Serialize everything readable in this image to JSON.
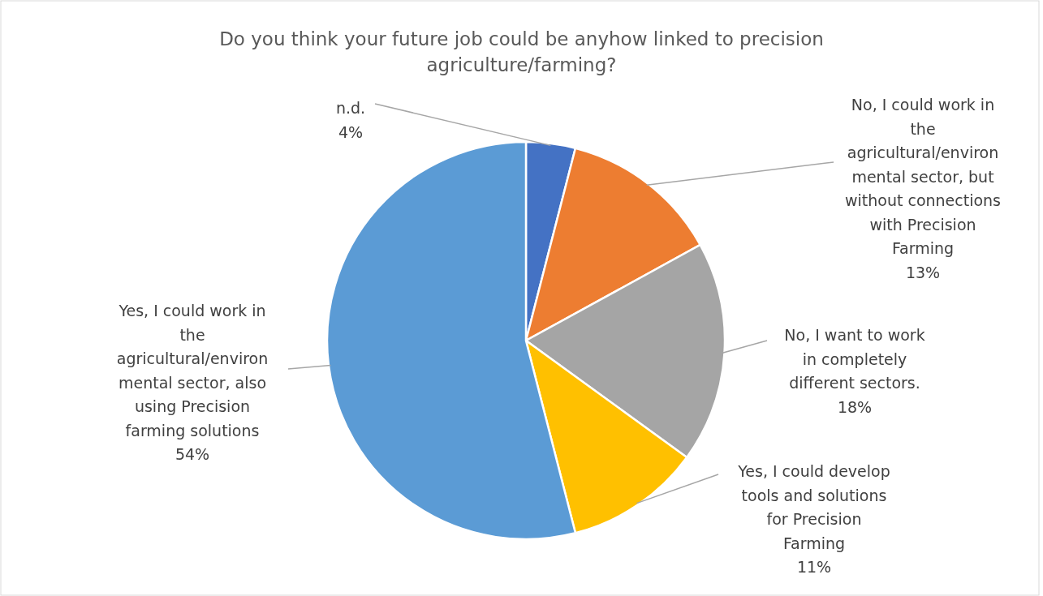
{
  "chart_data": {
    "type": "pie",
    "title": "Do you think your future job could be anyhow linked to precision agriculture/farming?",
    "categories": [
      "n.d.",
      "No, I could work in the agricultural/environmental sector, but without connections with Precision Farming",
      "No, I want to work in completely different sectors.",
      "Yes, I could develop tools and solutions for Precision Farming",
      "Yes, I could work in the agricultural/environmental sector, also using Precision farming solutions"
    ],
    "values": [
      4,
      13,
      18,
      11,
      54
    ],
    "value_labels": [
      "4%",
      "13%",
      "18%",
      "11%",
      "54%"
    ],
    "colors": [
      "#4472c4",
      "#ed7d31",
      "#a5a5a5",
      "#ffc000",
      "#5b9bd5"
    ]
  }
}
